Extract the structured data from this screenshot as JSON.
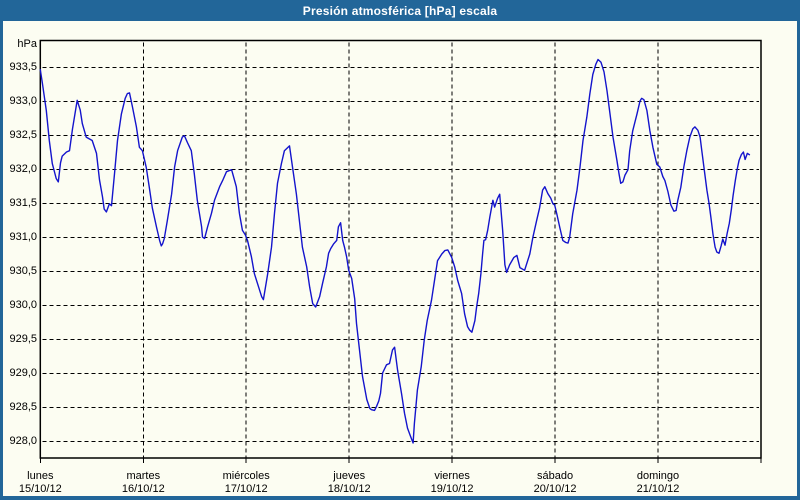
{
  "window": {
    "title": "Presión atmosférica [hPa] escala",
    "colors": {
      "chrome": "#226699",
      "background": "#fcfdf2",
      "line": "#1414cc",
      "grid": "#000000",
      "title_text": "#ffffff"
    }
  },
  "chart_data": {
    "type": "line",
    "title": "Presión atmosférica [hPa] escala",
    "ylabel": "hPa",
    "xlabel": "",
    "grid": "dashed horizontal at 0.5 hPa steps, dashed vertical at day starts",
    "legend": "none",
    "y_range_shown": [
      927.76,
      933.9
    ],
    "y_ticks": [
      {
        "v": 928.0,
        "label": "928,0"
      },
      {
        "v": 928.5,
        "label": "928,5"
      },
      {
        "v": 929.0,
        "label": "929,0"
      },
      {
        "v": 929.5,
        "label": "929,5"
      },
      {
        "v": 930.0,
        "label": "930,0"
      },
      {
        "v": 930.5,
        "label": "930,5"
      },
      {
        "v": 931.0,
        "label": "931,0"
      },
      {
        "v": 931.5,
        "label": "931,5"
      },
      {
        "v": 932.0,
        "label": "932,0"
      },
      {
        "v": 932.5,
        "label": "932,5"
      },
      {
        "v": 933.0,
        "label": "933,0"
      },
      {
        "v": 933.5,
        "label": "933,5"
      }
    ],
    "x_hours_range": [
      0,
      168
    ],
    "x_days": [
      {
        "name": "lunes",
        "date": "15/10/12"
      },
      {
        "name": "martes",
        "date": "16/10/12"
      },
      {
        "name": "miércoles",
        "date": "17/10/12"
      },
      {
        "name": "jueves",
        "date": "18/10/12"
      },
      {
        "name": "viernes",
        "date": "19/10/12"
      },
      {
        "name": "sábado",
        "date": "20/10/12"
      },
      {
        "name": "domingo",
        "date": "21/10/12"
      }
    ],
    "series": [
      {
        "name": "Presión atmosférica",
        "unit": "hPa",
        "points": [
          [
            0,
            933.47
          ],
          [
            0.5,
            933.27
          ],
          [
            1.4,
            932.87
          ],
          [
            2.1,
            932.43
          ],
          [
            2.8,
            932.09
          ],
          [
            3.7,
            931.87
          ],
          [
            4.2,
            931.82
          ],
          [
            4.7,
            932.1
          ],
          [
            5.1,
            932.2
          ],
          [
            6.1,
            932.26
          ],
          [
            6.8,
            932.28
          ],
          [
            7.5,
            932.6
          ],
          [
            8.6,
            933.02
          ],
          [
            9.3,
            932.88
          ],
          [
            9.8,
            932.68
          ],
          [
            10.7,
            932.48
          ],
          [
            12.1,
            932.43
          ],
          [
            13.1,
            932.24
          ],
          [
            13.8,
            931.85
          ],
          [
            14.5,
            931.6
          ],
          [
            14.9,
            931.42
          ],
          [
            15.4,
            931.38
          ],
          [
            16.1,
            931.5
          ],
          [
            16.6,
            931.47
          ],
          [
            17.3,
            931.94
          ],
          [
            18,
            932.43
          ],
          [
            18.9,
            932.82
          ],
          [
            19.8,
            933.05
          ],
          [
            20.3,
            933.12
          ],
          [
            20.8,
            933.13
          ],
          [
            21.5,
            932.92
          ],
          [
            22.4,
            932.63
          ],
          [
            23.1,
            932.33
          ],
          [
            23.8,
            932.28
          ],
          [
            24.7,
            932.03
          ],
          [
            25.4,
            931.74
          ],
          [
            26.1,
            931.44
          ],
          [
            27.1,
            931.15
          ],
          [
            27.8,
            930.96
          ],
          [
            28.2,
            930.88
          ],
          [
            28.5,
            930.91
          ],
          [
            28.9,
            930.99
          ],
          [
            29.6,
            931.25
          ],
          [
            30.6,
            931.64
          ],
          [
            31.3,
            932.04
          ],
          [
            32,
            932.28
          ],
          [
            33.1,
            932.48
          ],
          [
            33.6,
            932.5
          ],
          [
            34.3,
            932.4
          ],
          [
            35.2,
            932.28
          ],
          [
            35.9,
            931.94
          ],
          [
            36.6,
            931.55
          ],
          [
            37.6,
            931.16
          ],
          [
            37.8,
            931.01
          ],
          [
            38.3,
            930.99
          ],
          [
            39,
            931.16
          ],
          [
            39.9,
            931.36
          ],
          [
            40.6,
            931.55
          ],
          [
            41.8,
            931.75
          ],
          [
            42.5,
            931.84
          ],
          [
            43.4,
            931.97
          ],
          [
            44.6,
            932
          ],
          [
            45.7,
            931.75
          ],
          [
            46.4,
            931.36
          ],
          [
            47.1,
            931.11
          ],
          [
            47.8,
            931.04
          ],
          [
            48.3,
            930.96
          ],
          [
            49.2,
            930.72
          ],
          [
            49.9,
            930.47
          ],
          [
            50.6,
            930.33
          ],
          [
            51.6,
            930.13
          ],
          [
            52,
            930.09
          ],
          [
            53,
            930.47
          ],
          [
            53.9,
            930.86
          ],
          [
            54.6,
            931.36
          ],
          [
            55.3,
            931.8
          ],
          [
            56.2,
            932.09
          ],
          [
            56.9,
            932.28
          ],
          [
            58.1,
            932.35
          ],
          [
            58.8,
            932.04
          ],
          [
            59.7,
            931.64
          ],
          [
            60.4,
            931.25
          ],
          [
            61.1,
            930.86
          ],
          [
            62.1,
            930.57
          ],
          [
            62.8,
            930.27
          ],
          [
            63.5,
            930.03
          ],
          [
            64.2,
            929.98
          ],
          [
            65.1,
            930.13
          ],
          [
            65.8,
            930.33
          ],
          [
            66.7,
            930.57
          ],
          [
            67.2,
            930.77
          ],
          [
            67.7,
            930.84
          ],
          [
            68.4,
            930.91
          ],
          [
            69.1,
            930.96
          ],
          [
            69.5,
            931.16
          ],
          [
            70,
            931.22
          ],
          [
            70.5,
            930.96
          ],
          [
            70.9,
            930.86
          ],
          [
            71.4,
            930.72
          ],
          [
            71.9,
            930.52
          ],
          [
            72.6,
            930.4
          ],
          [
            73.3,
            930.1
          ],
          [
            73.7,
            929.74
          ],
          [
            74.4,
            929.35
          ],
          [
            75.1,
            928.96
          ],
          [
            76.1,
            928.62
          ],
          [
            76.8,
            928.49
          ],
          [
            77.2,
            928.47
          ],
          [
            77.9,
            928.46
          ],
          [
            78.4,
            928.52
          ],
          [
            78.9,
            928.6
          ],
          [
            79.3,
            928.71
          ],
          [
            79.8,
            929.01
          ],
          [
            80.7,
            929.13
          ],
          [
            81.4,
            929.15
          ],
          [
            82.1,
            929.35
          ],
          [
            82.6,
            929.39
          ],
          [
            83.3,
            929.05
          ],
          [
            84.2,
            928.71
          ],
          [
            84.9,
            928.42
          ],
          [
            85.6,
            928.2
          ],
          [
            86.3,
            928.08
          ],
          [
            86.9,
            927.98
          ],
          [
            87.2,
            928.27
          ],
          [
            87.9,
            928.76
          ],
          [
            88.8,
            929.1
          ],
          [
            89.5,
            929.49
          ],
          [
            90.2,
            929.78
          ],
          [
            91.2,
            930.08
          ],
          [
            91.9,
            930.37
          ],
          [
            92.6,
            930.66
          ],
          [
            93.6,
            930.76
          ],
          [
            94.3,
            930.81
          ],
          [
            95,
            930.82
          ],
          [
            95.9,
            930.71
          ],
          [
            96.6,
            930.57
          ],
          [
            97.3,
            930.37
          ],
          [
            98.2,
            930.18
          ],
          [
            98.9,
            929.88
          ],
          [
            99.6,
            929.69
          ],
          [
            100.1,
            929.64
          ],
          [
            100.6,
            929.61
          ],
          [
            101.3,
            929.78
          ],
          [
            101.7,
            929.98
          ],
          [
            102.2,
            930.18
          ],
          [
            102.7,
            930.47
          ],
          [
            103.1,
            930.76
          ],
          [
            103.4,
            930.96
          ],
          [
            103.8,
            930.97
          ],
          [
            104.3,
            931.11
          ],
          [
            104.8,
            931.31
          ],
          [
            105.5,
            931.55
          ],
          [
            105.9,
            931.45
          ],
          [
            106.6,
            931.58
          ],
          [
            107.1,
            931.64
          ],
          [
            107.8,
            931.1
          ],
          [
            108.3,
            930.6
          ],
          [
            108.7,
            930.49
          ],
          [
            109.4,
            930.6
          ],
          [
            110.4,
            930.71
          ],
          [
            111.1,
            930.74
          ],
          [
            111.8,
            930.56
          ],
          [
            112.9,
            930.52
          ],
          [
            114.1,
            930.76
          ],
          [
            114.8,
            931
          ],
          [
            115.7,
            931.25
          ],
          [
            116.4,
            931.44
          ],
          [
            117.1,
            931.7
          ],
          [
            117.6,
            931.75
          ],
          [
            118.3,
            931.65
          ],
          [
            119,
            931.58
          ],
          [
            119.5,
            931.5
          ],
          [
            119.9,
            931.48
          ],
          [
            120.4,
            931.35
          ],
          [
            121.1,
            931.15
          ],
          [
            121.8,
            930.96
          ],
          [
            122.5,
            930.93
          ],
          [
            123,
            930.92
          ],
          [
            123.4,
            931.01
          ],
          [
            124.1,
            931.35
          ],
          [
            125.1,
            931.7
          ],
          [
            125.8,
            932.04
          ],
          [
            126.5,
            932.43
          ],
          [
            127.4,
            932.77
          ],
          [
            128.1,
            933.11
          ],
          [
            128.8,
            933.4
          ],
          [
            129.5,
            933.55
          ],
          [
            130,
            933.62
          ],
          [
            130.7,
            933.58
          ],
          [
            131.4,
            933.44
          ],
          [
            132.1,
            933.16
          ],
          [
            132.8,
            932.82
          ],
          [
            133.5,
            932.48
          ],
          [
            134.4,
            932.14
          ],
          [
            134.9,
            931.94
          ],
          [
            135.3,
            931.8
          ],
          [
            135.8,
            931.82
          ],
          [
            136.3,
            931.92
          ],
          [
            137,
            932
          ],
          [
            137.4,
            932.28
          ],
          [
            138.1,
            932.57
          ],
          [
            139.1,
            932.82
          ],
          [
            139.8,
            933.01
          ],
          [
            140.2,
            933.05
          ],
          [
            140.7,
            933.03
          ],
          [
            141.4,
            932.87
          ],
          [
            142.1,
            932.57
          ],
          [
            142.8,
            932.33
          ],
          [
            143.7,
            932.08
          ],
          [
            144.4,
            932.04
          ],
          [
            145.1,
            931.9
          ],
          [
            145.6,
            931.84
          ],
          [
            146.3,
            931.68
          ],
          [
            147,
            931.48
          ],
          [
            147.7,
            931.39
          ],
          [
            148.2,
            931.4
          ],
          [
            148.6,
            931.55
          ],
          [
            149.3,
            931.74
          ],
          [
            150,
            932.04
          ],
          [
            150.7,
            932.28
          ],
          [
            151.4,
            932.48
          ],
          [
            152.1,
            932.6
          ],
          [
            152.6,
            932.63
          ],
          [
            153.3,
            932.58
          ],
          [
            153.8,
            932.48
          ],
          [
            154.2,
            932.28
          ],
          [
            154.7,
            932.04
          ],
          [
            155.4,
            931.7
          ],
          [
            155.9,
            931.5
          ],
          [
            156.3,
            931.31
          ],
          [
            156.8,
            931.05
          ],
          [
            157.3,
            930.86
          ],
          [
            157.7,
            930.79
          ],
          [
            158.2,
            930.77
          ],
          [
            158.7,
            930.88
          ],
          [
            159.1,
            930.98
          ],
          [
            159.6,
            930.89
          ],
          [
            160.1,
            931.06
          ],
          [
            160.6,
            931.21
          ],
          [
            161.1,
            931.42
          ],
          [
            161.5,
            931.62
          ],
          [
            162,
            931.84
          ],
          [
            162.5,
            932.02
          ],
          [
            162.9,
            932.14
          ],
          [
            163.4,
            932.22
          ],
          [
            163.9,
            932.26
          ],
          [
            164.3,
            932.15
          ],
          [
            164.8,
            932.24
          ],
          [
            165.3,
            932.22
          ]
        ]
      }
    ]
  }
}
